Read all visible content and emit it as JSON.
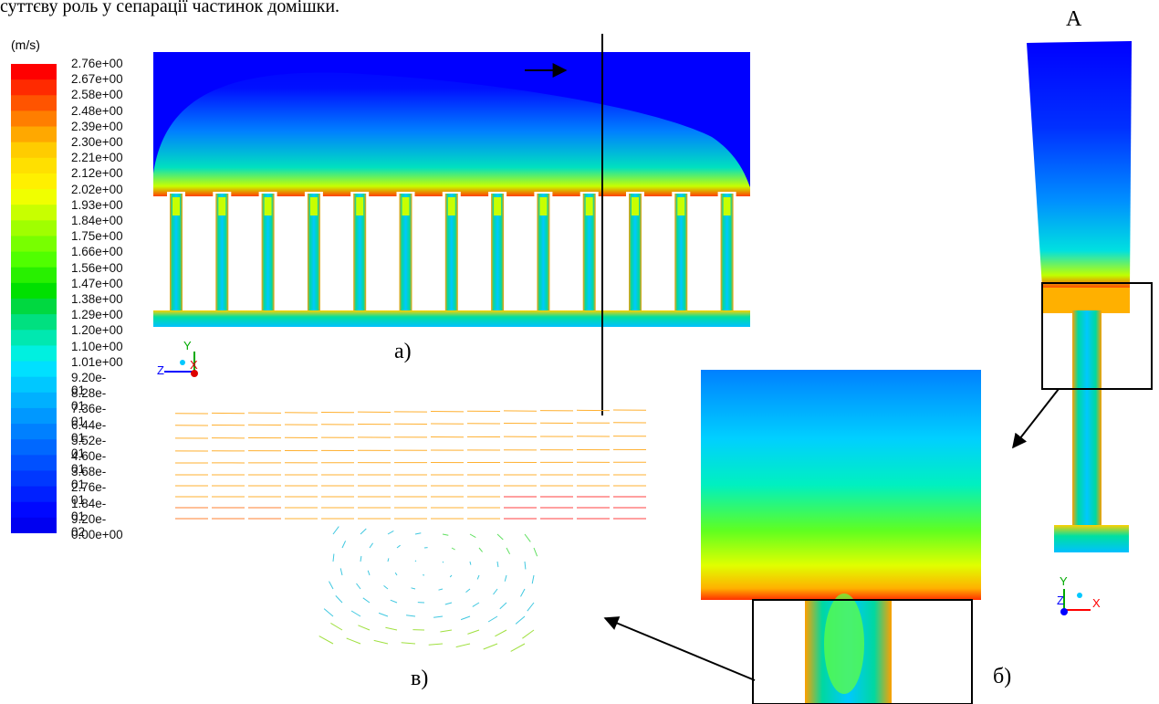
{
  "caption": "суттєву роль у сепарації частинок домішки.",
  "legend": {
    "unit": "(m/s)",
    "ticks": [
      "2.76e+00",
      "2.67e+00",
      "2.58e+00",
      "2.48e+00",
      "2.39e+00",
      "2.30e+00",
      "2.21e+00",
      "2.12e+00",
      "2.02e+00",
      "1.93e+00",
      "1.84e+00",
      "1.75e+00",
      "1.66e+00",
      "1.56e+00",
      "1.47e+00",
      "1.38e+00",
      "1.29e+00",
      "1.20e+00",
      "1.10e+00",
      "1.01e+00",
      "9.20e-01",
      "8.28e-01",
      "7.36e-01",
      "6.44e-01",
      "5.52e-01",
      "4.60e-01",
      "3.68e-01",
      "2.76e-01",
      "1.84e-01",
      "9.20e-02",
      "0.00e+00"
    ],
    "colors": [
      "#ff0000",
      "#ff2a00",
      "#ff5400",
      "#ff7e00",
      "#ffa800",
      "#ffcc00",
      "#ffe000",
      "#fff000",
      "#f0ff00",
      "#c8ff00",
      "#a0ff00",
      "#78ff00",
      "#50ff00",
      "#28f000",
      "#00e000",
      "#00d840",
      "#00e080",
      "#00e8b0",
      "#00f0e0",
      "#00e0ff",
      "#00c8ff",
      "#00b0ff",
      "#0098ff",
      "#0080ff",
      "#0068ff",
      "#0050ff",
      "#0038ff",
      "#0020ff",
      "#0008ff",
      "#0000f0"
    ]
  },
  "section_marker": {
    "label": "A",
    "label_right": "A"
  },
  "panels": {
    "a": "а)",
    "b": "б)",
    "v": "в)"
  },
  "axes_a": {
    "y": "Y",
    "z": "Z",
    "x": "X"
  },
  "axes_b": {
    "y": "Y",
    "z": "Z",
    "x": "X"
  },
  "colors": {
    "background_blue": "#0000ff",
    "vector_orange": "#ffb030",
    "vector_red": "#ff4040",
    "vector_cyan": "#40c8e0"
  }
}
